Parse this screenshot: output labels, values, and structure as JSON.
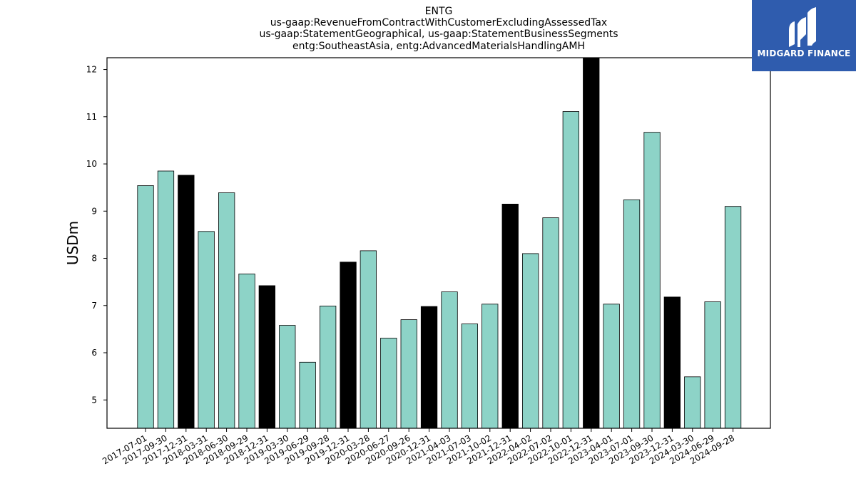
{
  "logo": {
    "text": "MIDGARD FINANCE",
    "background": "#2f5cae"
  },
  "chart_data": {
    "type": "bar",
    "title_lines": [
      "ENTG",
      "us-gaap:RevenueFromContractWithCustomerExcludingAssessedTax",
      "us-gaap:StatementGeographical, us-gaap:StatementBusinessSegments",
      "entg:SoutheastAsia, entg:AdvancedMaterialsHandlingAMH"
    ],
    "ylabel": "USDm",
    "xlabel": "",
    "ylim": [
      4.4,
      12.25
    ],
    "yticks": [
      5,
      6,
      7,
      8,
      9,
      10,
      11,
      12
    ],
    "colors": {
      "quarter": "#8dd3c7",
      "year_end": "#000000",
      "edge": "#000000"
    },
    "categories": [
      "2017-07-01",
      "2017-09-30",
      "2017-12-31",
      "2018-03-31",
      "2018-06-30",
      "2018-09-29",
      "2018-12-31",
      "2019-03-30",
      "2019-06-29",
      "2019-09-28",
      "2019-12-31",
      "2020-03-28",
      "2020-06-27",
      "2020-09-26",
      "2020-12-31",
      "2021-04-03",
      "2021-07-03",
      "2021-10-02",
      "2021-12-31",
      "2022-04-02",
      "2022-07-02",
      "2022-10-01",
      "2022-12-31",
      "2023-04-01",
      "2023-07-01",
      "2023-09-30",
      "2023-12-31",
      "2024-03-30",
      "2024-06-29",
      "2024-09-28"
    ],
    "values": [
      9.54,
      9.85,
      9.76,
      8.57,
      9.39,
      7.67,
      7.42,
      6.58,
      5.8,
      6.99,
      7.92,
      8.16,
      6.31,
      6.7,
      6.98,
      7.29,
      6.61,
      7.03,
      9.15,
      8.1,
      8.86,
      11.11,
      12.3,
      7.03,
      9.24,
      10.67,
      7.18,
      5.49,
      7.08,
      9.1
    ],
    "year_end": [
      false,
      false,
      true,
      false,
      false,
      false,
      true,
      false,
      false,
      false,
      true,
      false,
      false,
      false,
      true,
      false,
      false,
      false,
      true,
      false,
      false,
      false,
      true,
      false,
      false,
      false,
      true,
      false,
      false,
      false
    ],
    "grid": false,
    "legend": "none"
  }
}
